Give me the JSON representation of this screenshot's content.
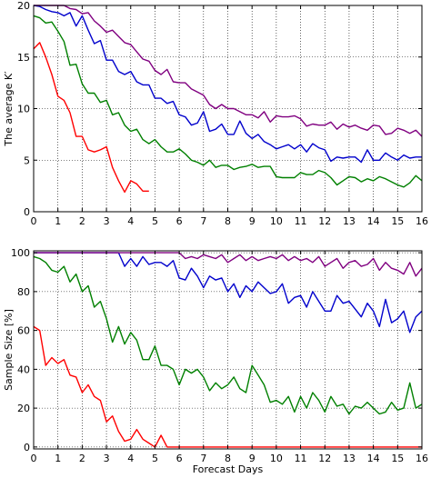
{
  "chart_data": [
    {
      "type": "line",
      "title": "",
      "xlabel": "",
      "ylabel": "The average K′",
      "xlim": [
        0,
        16
      ],
      "ylim": [
        0,
        20
      ],
      "xticks": [
        "0",
        "1",
        "2",
        "3",
        "4",
        "5",
        "6",
        "7",
        "8",
        "9",
        "10",
        "11",
        "12",
        "13",
        "14",
        "15",
        "16"
      ],
      "yticks": [
        "0",
        "5",
        "10",
        "15",
        "20"
      ],
      "grid": true,
      "x_step": 0.25,
      "series": [
        {
          "color": "#ff0000",
          "values": [
            15.8,
            16.4,
            15.0,
            13.3,
            11.2,
            10.8,
            9.6,
            7.3,
            7.3,
            6.0,
            5.8,
            6.0,
            6.3,
            4.3,
            3.0,
            1.9,
            3.0,
            2.7,
            2.0,
            2.0
          ]
        },
        {
          "color": "#008000",
          "values": [
            19.0,
            18.8,
            18.3,
            18.4,
            17.5,
            16.5,
            14.2,
            14.3,
            12.4,
            11.5,
            11.5,
            10.6,
            10.8,
            9.4,
            9.6,
            8.4,
            7.8,
            8.0,
            7.0,
            6.6,
            7.0,
            6.3,
            5.8,
            5.8,
            6.1,
            5.6,
            5.0,
            4.8,
            4.5,
            5.0,
            4.3,
            4.5,
            4.5,
            4.1,
            4.3,
            4.4,
            4.6,
            4.3,
            4.4,
            4.4,
            3.4,
            3.3,
            3.3,
            3.3,
            3.8,
            3.6,
            3.6,
            4.0,
            3.8,
            3.3,
            2.6,
            3.0,
            3.4,
            3.3,
            2.9,
            3.2,
            3.0,
            3.4,
            3.2,
            2.9,
            2.6,
            2.4,
            2.8,
            3.5,
            3.0
          ]
        },
        {
          "color": "#0000cc",
          "values": [
            20.0,
            19.9,
            19.6,
            19.4,
            19.3,
            19.0,
            19.3,
            18.0,
            19.0,
            17.6,
            16.3,
            16.6,
            14.7,
            14.7,
            13.6,
            13.3,
            13.6,
            12.6,
            12.3,
            12.3,
            11.0,
            11.0,
            10.5,
            10.7,
            9.4,
            9.2,
            8.4,
            8.6,
            9.7,
            7.8,
            8.0,
            8.5,
            7.5,
            7.5,
            8.8,
            7.6,
            7.1,
            7.5,
            6.8,
            6.5,
            6.1,
            6.3,
            6.5,
            6.1,
            6.5,
            5.8,
            6.6,
            6.2,
            6.0,
            4.9,
            5.3,
            5.2,
            5.3,
            5.3,
            4.8,
            6.0,
            5.0,
            5.0,
            5.7,
            5.3,
            5.0,
            5.5,
            5.2,
            5.3,
            5.3
          ]
        },
        {
          "color": "#800080",
          "values": [
            20.0,
            20.0,
            20.0,
            20.0,
            20.0,
            20.0,
            19.7,
            19.6,
            19.2,
            19.3,
            18.5,
            18.0,
            17.4,
            17.6,
            17.0,
            16.4,
            16.2,
            15.5,
            14.8,
            14.6,
            13.7,
            13.3,
            13.8,
            12.6,
            12.5,
            12.5,
            11.9,
            11.6,
            11.3,
            10.4,
            10.0,
            10.4,
            10.0,
            10.0,
            9.7,
            9.4,
            9.4,
            9.1,
            9.7,
            8.7,
            9.3,
            9.2,
            9.2,
            9.3,
            9.0,
            8.3,
            8.5,
            8.4,
            8.4,
            8.7,
            8.0,
            8.5,
            8.2,
            8.4,
            8.1,
            7.9,
            8.4,
            8.3,
            7.5,
            7.6,
            8.1,
            7.9,
            7.6,
            7.9,
            7.3
          ]
        }
      ]
    },
    {
      "type": "line",
      "title": "",
      "xlabel": "Forecast Days",
      "ylabel": "Sample Size [%]",
      "xlim": [
        0,
        16
      ],
      "ylim": [
        -1,
        101
      ],
      "xticks": [
        "0",
        "1",
        "2",
        "3",
        "4",
        "5",
        "6",
        "7",
        "8",
        "9",
        "10",
        "11",
        "12",
        "13",
        "14",
        "15",
        "16"
      ],
      "yticks": [
        "0",
        "20",
        "40",
        "60",
        "80",
        "100"
      ],
      "grid": true,
      "x_step": 0.25,
      "series": [
        {
          "color": "#ff0000",
          "values": [
            62,
            60,
            42,
            46,
            43,
            45,
            37,
            36,
            28,
            32,
            26,
            24,
            13,
            16,
            8,
            3,
            4,
            9,
            4,
            2,
            0,
            6,
            0,
            0,
            0,
            0,
            0,
            0,
            0,
            0,
            0,
            0,
            0,
            0,
            0,
            0,
            0,
            0,
            0,
            0,
            0,
            0,
            0,
            0,
            0,
            0,
            0,
            0,
            0,
            0,
            0,
            0,
            0,
            0,
            0,
            0,
            0,
            0,
            0,
            0,
            0,
            0,
            0,
            0,
            0
          ]
        },
        {
          "color": "#008000",
          "values": [
            98,
            97,
            95,
            91,
            90,
            93,
            85,
            89,
            80,
            83,
            72,
            75,
            66,
            54,
            62,
            53,
            59,
            55,
            45,
            45,
            52,
            42,
            42,
            40,
            32,
            40,
            38,
            40,
            36,
            29,
            33,
            30,
            32,
            36,
            30,
            28,
            42,
            37,
            32,
            23,
            24,
            22,
            26,
            18,
            26,
            20,
            28,
            24,
            18,
            26,
            21,
            22,
            17,
            21,
            20,
            23,
            20,
            17,
            18,
            23,
            19,
            20,
            33,
            20,
            22
          ]
        },
        {
          "color": "#0000cc",
          "values": [
            100,
            100,
            100,
            100,
            100,
            100,
            100,
            100,
            100,
            100,
            100,
            100,
            100,
            100,
            100,
            93,
            97,
            93,
            98,
            94,
            95,
            95,
            93,
            96,
            87,
            86,
            92,
            88,
            82,
            88,
            86,
            87,
            80,
            84,
            77,
            83,
            80,
            85,
            82,
            79,
            80,
            84,
            74,
            77,
            78,
            72,
            80,
            75,
            70,
            70,
            78,
            74,
            75,
            71,
            67,
            74,
            70,
            62,
            76,
            64,
            66,
            70,
            59,
            67,
            70
          ]
        },
        {
          "color": "#800080",
          "values": [
            100,
            100,
            100,
            100,
            100,
            100,
            100,
            100,
            100,
            100,
            100,
            100,
            100,
            100,
            100,
            100,
            100,
            100,
            100,
            100,
            100,
            100,
            100,
            100,
            100,
            97,
            98,
            97,
            99,
            98,
            97,
            99,
            95,
            97,
            99,
            96,
            98,
            96,
            97,
            98,
            97,
            99,
            96,
            98,
            96,
            97,
            95,
            98,
            93,
            95,
            97,
            92,
            95,
            96,
            93,
            94,
            97,
            91,
            95,
            92,
            91,
            89,
            95,
            88,
            92
          ]
        }
      ]
    }
  ]
}
